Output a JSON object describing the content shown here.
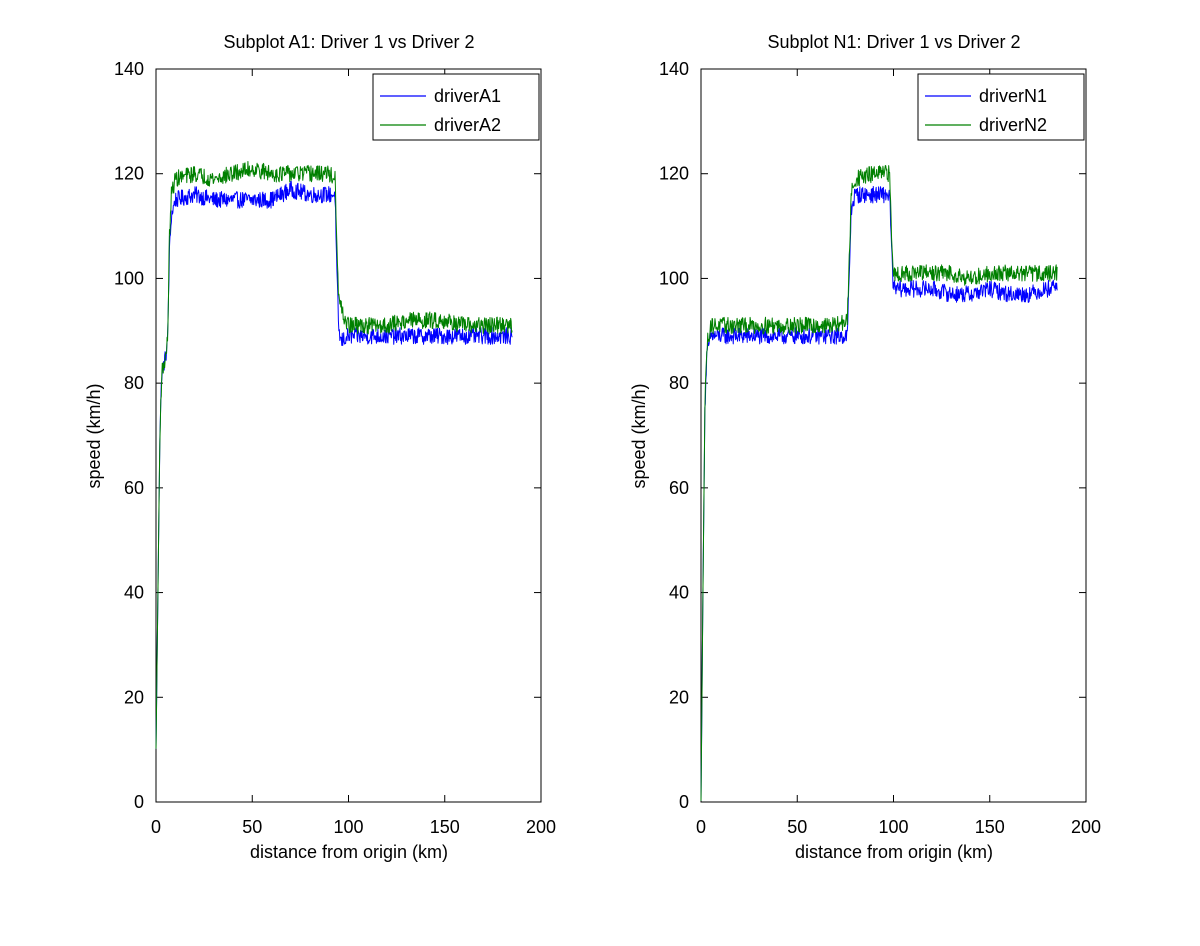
{
  "charts": [
    {
      "title": "Subplot A1: Driver 1 vs Driver 2",
      "xlabel": "distance from origin (km)",
      "ylabel": "speed (km/h)",
      "xticks": [
        "0",
        "50",
        "100",
        "150",
        "200"
      ],
      "yticks": [
        "0",
        "20",
        "40",
        "60",
        "80",
        "100",
        "120",
        "140"
      ],
      "legend": [
        "driverA1",
        "driverA2"
      ]
    },
    {
      "title": "Subplot N1: Driver 1 vs Driver 2",
      "xlabel": "distance from origin (km)",
      "ylabel": "speed (km/h)",
      "xticks": [
        "0",
        "50",
        "100",
        "150",
        "200"
      ],
      "yticks": [
        "0",
        "20",
        "40",
        "60",
        "80",
        "100",
        "120",
        "140"
      ],
      "legend": [
        "driverN1",
        "driverN2"
      ]
    }
  ],
  "colors": {
    "series1": "#0000ff",
    "series2": "#008000",
    "axes": "#000000"
  },
  "chart_data": [
    {
      "type": "line",
      "title": "Subplot A1: Driver 1 vs Driver 2",
      "xlabel": "distance from origin (km)",
      "ylabel": "speed (km/h)",
      "xlim": [
        0,
        200
      ],
      "ylim": [
        0,
        140
      ],
      "grid": false,
      "legend_position": "top-right",
      "series": [
        {
          "name": "driverA1",
          "color": "#0000ff",
          "points": [
            [
              0,
              10
            ],
            [
              1,
              40
            ],
            [
              2,
              70
            ],
            [
              3,
              82
            ],
            [
              5,
              85
            ],
            [
              6,
              88
            ],
            [
              7,
              105
            ],
            [
              8,
              112
            ],
            [
              10,
              115
            ],
            [
              20,
              116
            ],
            [
              30,
              115
            ],
            [
              40,
              115
            ],
            [
              50,
              115
            ],
            [
              60,
              115
            ],
            [
              70,
              117
            ],
            [
              80,
              116
            ],
            [
              90,
              116
            ],
            [
              93,
              116
            ],
            [
              94,
              100
            ],
            [
              95,
              90
            ],
            [
              96,
              88
            ],
            [
              100,
              89
            ],
            [
              110,
              89
            ],
            [
              120,
              89
            ],
            [
              130,
              89
            ],
            [
              140,
              89
            ],
            [
              150,
              89
            ],
            [
              160,
              89
            ],
            [
              170,
              89
            ],
            [
              180,
              89
            ],
            [
              185,
              89
            ]
          ]
        },
        {
          "name": "driverA2",
          "color": "#008000",
          "points": [
            [
              0,
              10
            ],
            [
              1,
              40
            ],
            [
              2,
              70
            ],
            [
              3,
              82
            ],
            [
              5,
              85
            ],
            [
              6,
              88
            ],
            [
              7,
              108
            ],
            [
              8,
              116
            ],
            [
              10,
              119
            ],
            [
              20,
              120
            ],
            [
              30,
              119
            ],
            [
              40,
              120
            ],
            [
              50,
              121
            ],
            [
              60,
              120
            ],
            [
              70,
              120
            ],
            [
              80,
              120
            ],
            [
              90,
              120
            ],
            [
              93,
              119
            ],
            [
              94,
              105
            ],
            [
              95,
              96
            ],
            [
              97,
              93
            ],
            [
              100,
              91
            ],
            [
              110,
              91
            ],
            [
              120,
              91
            ],
            [
              130,
              92
            ],
            [
              140,
              92
            ],
            [
              150,
              92
            ],
            [
              160,
              91
            ],
            [
              170,
              91
            ],
            [
              180,
              91
            ],
            [
              185,
              91
            ]
          ]
        }
      ]
    },
    {
      "type": "line",
      "title": "Subplot N1: Driver 1 vs Driver 2",
      "xlabel": "distance from origin (km)",
      "ylabel": "speed (km/h)",
      "xlim": [
        0,
        200
      ],
      "ylim": [
        0,
        140
      ],
      "grid": false,
      "legend_position": "top-right",
      "series": [
        {
          "name": "driverN1",
          "color": "#0000ff",
          "points": [
            [
              0,
              0
            ],
            [
              1,
              40
            ],
            [
              2,
              75
            ],
            [
              3,
              85
            ],
            [
              5,
              89
            ],
            [
              10,
              89
            ],
            [
              20,
              89
            ],
            [
              30,
              89
            ],
            [
              40,
              89
            ],
            [
              50,
              89
            ],
            [
              60,
              89
            ],
            [
              70,
              89
            ],
            [
              76,
              89
            ],
            [
              77,
              100
            ],
            [
              78,
              113
            ],
            [
              80,
              116
            ],
            [
              90,
              116
            ],
            [
              98,
              116
            ],
            [
              99,
              105
            ],
            [
              100,
              98
            ],
            [
              110,
              98
            ],
            [
              120,
              98
            ],
            [
              130,
              97
            ],
            [
              140,
              97
            ],
            [
              150,
              98
            ],
            [
              160,
              97
            ],
            [
              170,
              97
            ],
            [
              180,
              98
            ],
            [
              185,
              99
            ]
          ]
        },
        {
          "name": "driverN2",
          "color": "#008000",
          "points": [
            [
              0,
              0
            ],
            [
              1,
              40
            ],
            [
              2,
              75
            ],
            [
              3,
              87
            ],
            [
              5,
              91
            ],
            [
              10,
              91
            ],
            [
              20,
              91
            ],
            [
              30,
              91
            ],
            [
              40,
              91
            ],
            [
              50,
              91
            ],
            [
              60,
              91
            ],
            [
              70,
              91
            ],
            [
              76,
              92
            ],
            [
              77,
              103
            ],
            [
              78,
              116
            ],
            [
              80,
              119
            ],
            [
              90,
              120
            ],
            [
              98,
              120
            ],
            [
              99,
              108
            ],
            [
              100,
              101
            ],
            [
              110,
              101
            ],
            [
              120,
              101
            ],
            [
              130,
              101
            ],
            [
              140,
              100
            ],
            [
              150,
              101
            ],
            [
              160,
              101
            ],
            [
              170,
              101
            ],
            [
              180,
              101
            ],
            [
              185,
              101
            ]
          ]
        }
      ]
    }
  ]
}
